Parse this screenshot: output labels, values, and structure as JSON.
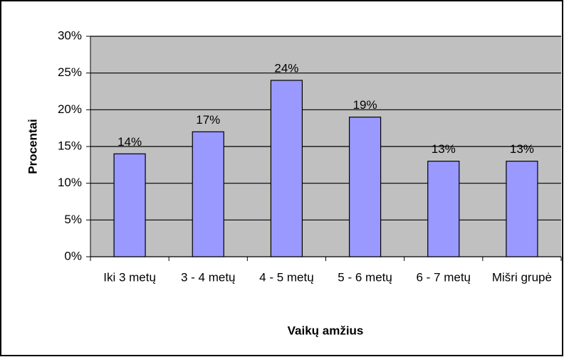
{
  "chart_data": {
    "type": "bar",
    "x_label": "Vaikų amžius",
    "y_label": "Procentai",
    "categories": [
      "Iki 3 metų",
      "3 - 4 metų",
      "4 - 5 metų",
      "5 - 6 metų",
      "6 - 7 metų",
      "Mišri grupė"
    ],
    "values": [
      14,
      17,
      24,
      19,
      13,
      13
    ],
    "value_labels": [
      "14%",
      "17%",
      "24%",
      "19%",
      "13%",
      "13%"
    ],
    "color": "#9999ff",
    "ylim": [
      0,
      30
    ],
    "yticks": [
      {
        "value": 0,
        "label": "0%"
      },
      {
        "value": 5,
        "label": "5%"
      },
      {
        "value": 10,
        "label": "10%"
      },
      {
        "value": 15,
        "label": "15%"
      },
      {
        "value": 20,
        "label": "20%"
      },
      {
        "value": 25,
        "label": "25%"
      },
      {
        "value": 30,
        "label": "30%"
      }
    ],
    "grid": true
  }
}
